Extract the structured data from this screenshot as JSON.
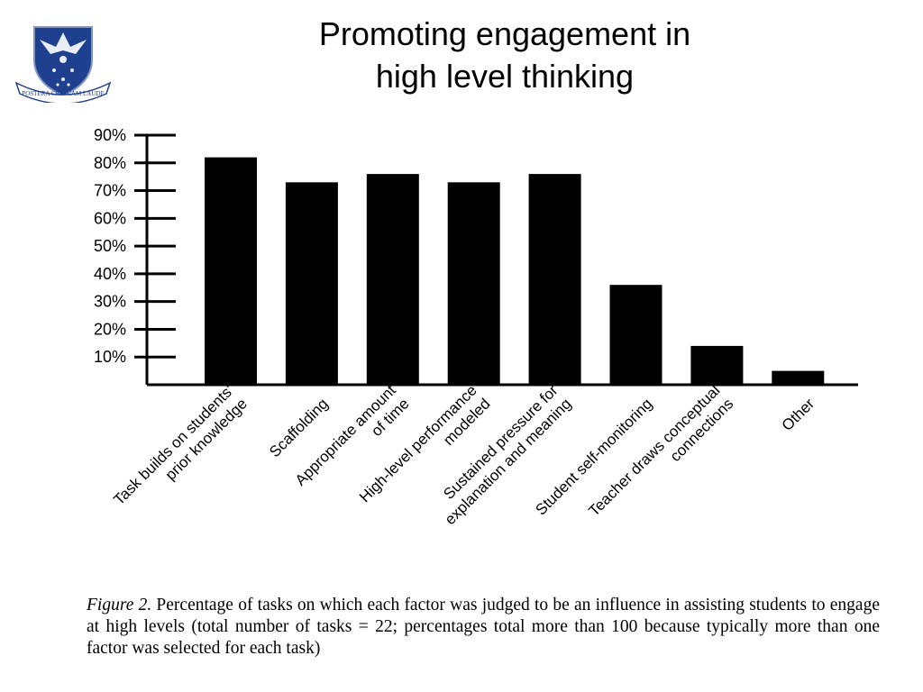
{
  "slide": {
    "title_line1": "Promoting engagement in",
    "title_line2": "high level thinking",
    "logo_icon": "university-crest-icon",
    "logo_motto": "POSTERA CRESCAM LAUDE"
  },
  "caption": {
    "figure_label": "Figure 2.",
    "text": " Percentage of tasks on which each factor was judged to be an influence in assisting students to engage at high levels (total number of tasks = 22; percentages total more than 100 because typically more than one factor was selected for each task)"
  },
  "chart_data": {
    "type": "bar",
    "title": "",
    "xlabel": "",
    "ylabel": "",
    "ylim": [
      0,
      90
    ],
    "yticks": [
      10,
      20,
      30,
      40,
      50,
      60,
      70,
      80,
      90
    ],
    "ytick_labels": [
      "10%",
      "20%",
      "30%",
      "40%",
      "50%",
      "60%",
      "70%",
      "80%",
      "90%"
    ],
    "categories": [
      [
        "Task builds on students'",
        "prior knowledge"
      ],
      [
        "Scaffolding"
      ],
      [
        "Appropriate amount",
        "of time"
      ],
      [
        "High-level performance",
        "modeled"
      ],
      [
        "Sustained pressure for",
        "explanation and meaning"
      ],
      [
        "Student self-monitoring"
      ],
      [
        "Teacher draws conceptual",
        "connections"
      ],
      [
        "Other"
      ]
    ],
    "values": [
      82,
      73,
      76,
      73,
      76,
      36,
      14,
      5
    ],
    "bar_color": "#000000",
    "grid": false,
    "legend": "none"
  }
}
